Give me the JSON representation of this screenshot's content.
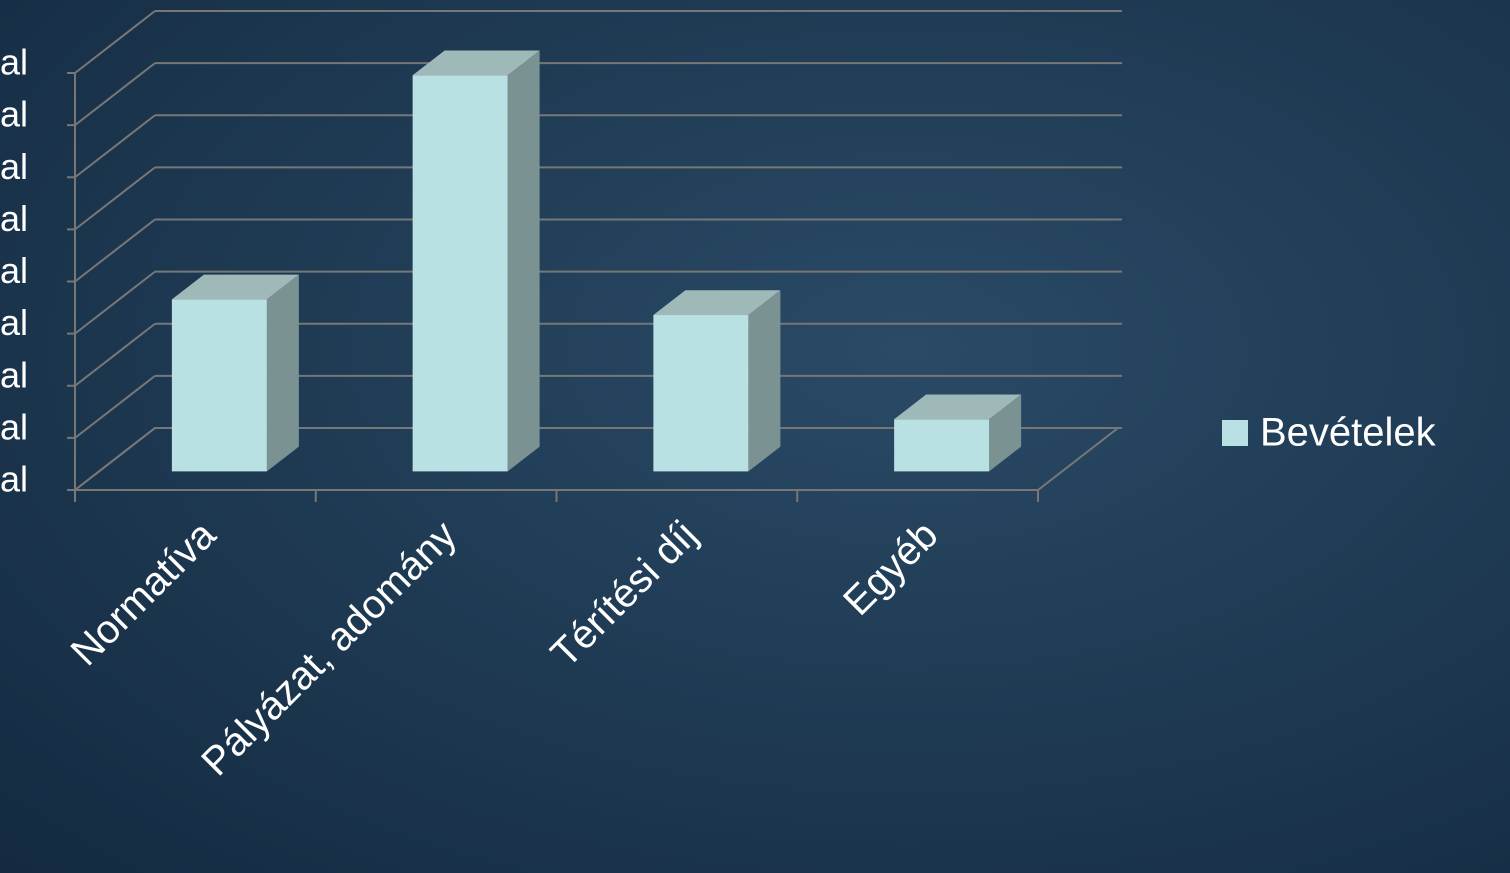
{
  "chart_data": {
    "type": "bar3d",
    "categories": [
      "Normatíva",
      "Pályázat, adomány",
      "Térítési díj",
      "Egyéb"
    ],
    "series": [
      {
        "name": "Bevételek",
        "color": "#b9e0e2",
        "values": [
          3.3,
          7.6,
          3.0,
          1.0
        ]
      }
    ],
    "ylim": [
      0,
      8
    ],
    "yticks": [
      {
        "value": 0,
        "label": "al"
      },
      {
        "value": 1,
        "label": "al"
      },
      {
        "value": 2,
        "label": "al"
      },
      {
        "value": 3,
        "label": "al"
      },
      {
        "value": 4,
        "label": "al"
      },
      {
        "value": 5,
        "label": "al"
      },
      {
        "value": 6,
        "label": "al"
      },
      {
        "value": 7,
        "label": "al"
      },
      {
        "value": 8,
        "label": "al"
      }
    ],
    "grid": true,
    "legend": "right"
  }
}
